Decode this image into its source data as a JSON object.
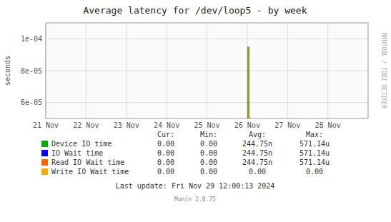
{
  "chart_data": {
    "type": "line",
    "title": "Average latency for /dev/loop5 - by week",
    "y_label": "seconds",
    "xlim": [
      1732060800,
      1732752000
    ],
    "xticks": [
      {
        "value": 1732060800,
        "label": "21 Nov"
      },
      {
        "value": 1732147200,
        "label": "22 Nov"
      },
      {
        "value": 1732233600,
        "label": "23 Nov"
      },
      {
        "value": 1732320000,
        "label": "24 Nov"
      },
      {
        "value": 1732406400,
        "label": "25 Nov"
      },
      {
        "value": 1732492800,
        "label": "26 Nov"
      },
      {
        "value": 1732579200,
        "label": "27 Nov"
      },
      {
        "value": 1732665600,
        "label": "28 Nov"
      }
    ],
    "ylim": [
      5e-05,
      0.00011
    ],
    "yticks": [
      {
        "value": 6e-05,
        "label": "6e-05"
      },
      {
        "value": 8e-05,
        "label": "8e-05"
      },
      {
        "value": 0.0001,
        "label": "1e-04"
      }
    ],
    "grid": true,
    "stats_headers": [
      "Cur:",
      "Min:",
      "Avg:",
      "Max:"
    ],
    "series": [
      {
        "name": "Device IO time",
        "color": "#00aa00",
        "x": [
          1732494400,
          1732494400
        ],
        "values": [
          5e-05,
          9.5e-05
        ],
        "stats": [
          "0.00",
          "0.00",
          "244.75n",
          "571.14u"
        ]
      },
      {
        "name": "IO Wait time",
        "color": "#0000ff",
        "x": [],
        "values": [],
        "stats": [
          "0.00",
          "0.00",
          "244.75n",
          "571.14u"
        ]
      },
      {
        "name": "Read IO Wait time",
        "color": "#ff6600",
        "x": [
          1732496400,
          1732496400
        ],
        "values": [
          5e-05,
          9.5e-05
        ],
        "stats": [
          "0.00",
          "0.00",
          "244.75n",
          "571.14u"
        ]
      },
      {
        "name": "Write IO Wait time",
        "color": "#ffaa00",
        "x": [
          1732498400,
          1732498400
        ],
        "values": [
          5e-05,
          5.1e-05
        ],
        "stats": [
          "0.00",
          "0.00",
          "0.00",
          "0.00"
        ]
      }
    ],
    "footer": "Last update: Fri Nov 29 12:00:13 2024",
    "version": "Munin 2.0.75",
    "side_label": "RRDTOOL / TOBI OETIKER"
  }
}
